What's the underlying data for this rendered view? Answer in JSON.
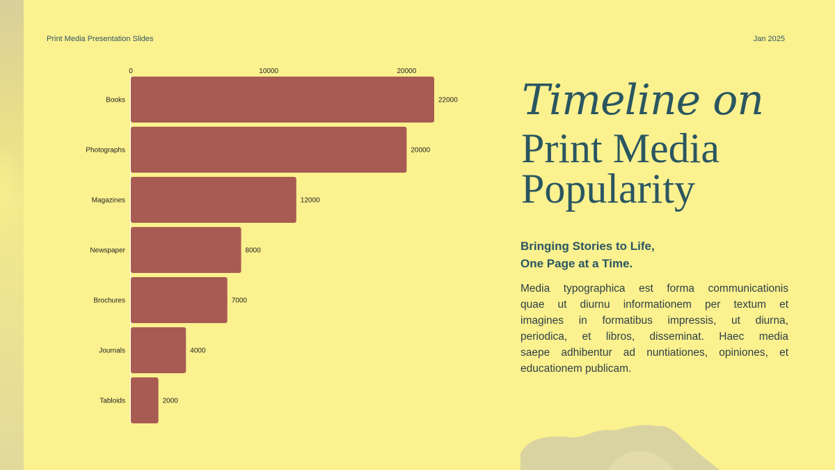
{
  "header": {
    "deck_title": "Print Media Presentation Slides",
    "date": "Jan 2025"
  },
  "title": {
    "script_line": "Timeline on",
    "line_1": "Print Media",
    "line_2": "Popularity"
  },
  "subtitle": {
    "line_1": "Bringing Stories to Life,",
    "line_2": "One Page at a Time."
  },
  "body": {
    "lines": [
      "Media typographica est forma communicationis",
      "quae ut diurnu informationem per textum et",
      "imagines in formatibus impressis, ut diurna,",
      "periodica, et libros, disseminat. Haec media",
      "saepe adhibentur ad nuntiationes, opiniones, et",
      "educationem publicam."
    ]
  },
  "colors": {
    "background": "#fbf18f",
    "bar": "#a75b52",
    "title_text": "#2a5661",
    "axis_text": "#222222"
  },
  "chart_data": {
    "type": "bar",
    "orientation": "horizontal",
    "categories": [
      "Books",
      "Photographs",
      "Magazines",
      "Newspaper",
      "Brochures",
      "Journals",
      "Tabloids"
    ],
    "values": [
      22000,
      20000,
      12000,
      8000,
      7000,
      4000,
      2000
    ],
    "xlim": [
      0,
      22000
    ],
    "x_ticks": [
      0,
      10000,
      20000
    ],
    "x_axis_position": "top",
    "data_labels": true,
    "grid": false,
    "legend": "none"
  }
}
